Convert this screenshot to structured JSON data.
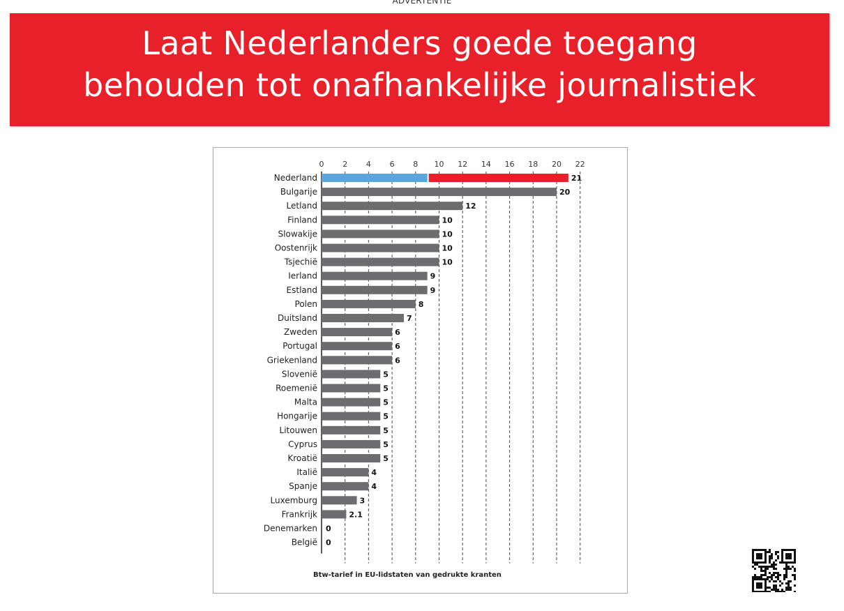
{
  "advertentie_label": "ADVERTENTIE",
  "headline": {
    "line1": "Laat Nederlanders goede toegang",
    "line2": "behouden tot onafhankelijke journalistiek"
  },
  "colors": {
    "banner": "#e8202a",
    "bar": "#6d6c6e",
    "highlight_blue": "#5aa6dc",
    "highlight_red": "#e8202a"
  },
  "chart_data": {
    "type": "bar",
    "orientation": "horizontal",
    "caption": "Btw-tarief in EU-lidstaten van gedrukte kranten",
    "x_ticks": [
      0,
      2,
      4,
      6,
      8,
      10,
      12,
      14,
      16,
      18,
      20,
      22
    ],
    "xlim": [
      0,
      22
    ],
    "grid": "vertical dashed",
    "categories": [
      "Nederland",
      "Bulgarije",
      "Letland",
      "Finland",
      "Slowakije",
      "Oostenrijk",
      "Tsjechië",
      "Ierland",
      "Estland",
      "Polen",
      "Duitsland",
      "Zweden",
      "Portugal",
      "Griekenland",
      "Slovenië",
      "Roemenië",
      "Malta",
      "Hongarije",
      "Litouwen",
      "Cyprus",
      "Kroatië",
      "Italië",
      "Spanje",
      "Luxemburg",
      "Frankrijk",
      "Denemarken",
      "België"
    ],
    "values": [
      21,
      20,
      12,
      10,
      10,
      10,
      10,
      9,
      9,
      8,
      7,
      6,
      6,
      6,
      5,
      5,
      5,
      5,
      5,
      5,
      5,
      4,
      4,
      3,
      2.1,
      0,
      0
    ],
    "value_labels": [
      "21",
      "20",
      "12",
      "10",
      "10",
      "10",
      "10",
      "9",
      "9",
      "8",
      "7",
      "6",
      "6",
      "6",
      "5",
      "5",
      "5",
      "5",
      "5",
      "5",
      "5",
      "4",
      "4",
      "3",
      "2.1",
      "0",
      "0"
    ],
    "highlight": {
      "category": "Nederland",
      "blue_part": 9,
      "red_part": 12
    }
  }
}
